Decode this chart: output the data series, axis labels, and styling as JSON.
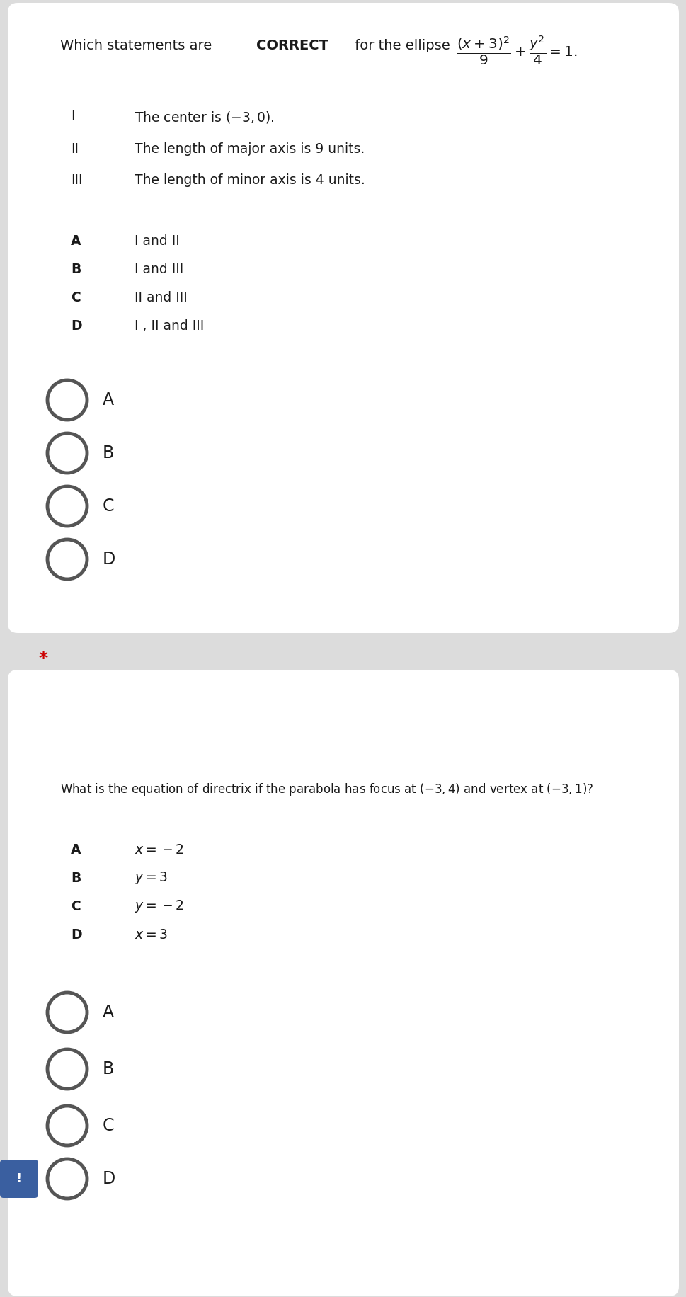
{
  "bg_outer": "#dcdcdc",
  "bg_card": "#ffffff",
  "q1_question_prefix": "Which statements are ",
  "q1_question_bold": "CORRECT",
  "q1_question_suffix": " for the ellipse",
  "q1_equation": "$\\dfrac{(x+3)^{2}}{9}+\\dfrac{y^{2}}{4}=1.$",
  "q1_statements": [
    [
      "I",
      "The center is $(-3,0)$."
    ],
    [
      "II",
      "The length of major axis is 9 units."
    ],
    [
      "III",
      "The length of minor axis is 4 units."
    ]
  ],
  "q1_options": [
    [
      "A",
      "I and II"
    ],
    [
      "B",
      "I and III"
    ],
    [
      "C",
      "II and III"
    ],
    [
      "D",
      "I , II and III"
    ]
  ],
  "q1_circles": [
    "A",
    "B",
    "C",
    "D"
  ],
  "separator_star": "*",
  "separator_star_color": "#cc0000",
  "q2_question": "What is the equation of directrix if the parabola has focus at $(-3,4)$ and vertex at $(-3,1)$?",
  "q2_options": [
    [
      "A",
      "$x=-2$"
    ],
    [
      "B",
      "$y=3$"
    ],
    [
      "C",
      "$y=-2$"
    ],
    [
      "D",
      "$x=3$"
    ]
  ],
  "q2_circles": [
    "A",
    "B",
    "C",
    "D"
  ],
  "text_color": "#1a1a1a",
  "circle_color": "#555555",
  "fs_question": 14,
  "fs_statement": 13.5,
  "fs_option": 13.5,
  "fs_circle_label": 17,
  "fs_star": 18,
  "fs_q2question": 12
}
